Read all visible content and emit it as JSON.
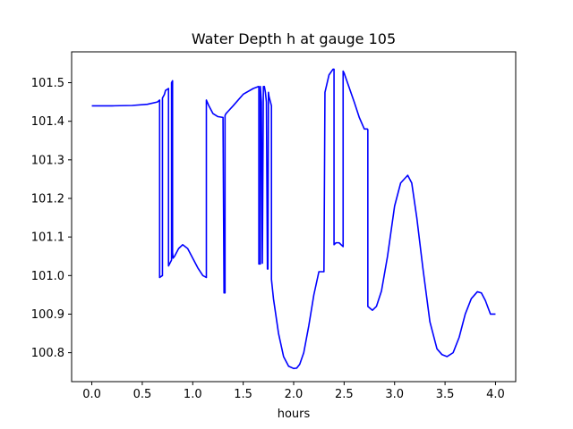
{
  "chart_data": {
    "type": "line",
    "title": "Water Depth h at gauge 105",
    "xlabel": "hours",
    "ylabel": "",
    "xlim": [
      -0.2,
      4.2
    ],
    "ylim": [
      100.725,
      101.58
    ],
    "xticks": [
      0.0,
      0.5,
      1.0,
      1.5,
      2.0,
      2.5,
      3.0,
      3.5,
      4.0
    ],
    "xtick_labels": [
      "0.0",
      "0.5",
      "1.0",
      "1.5",
      "2.0",
      "2.5",
      "3.0",
      "3.5",
      "4.0"
    ],
    "yticks": [
      100.8,
      100.9,
      101.0,
      101.1,
      101.2,
      101.3,
      101.4,
      101.5
    ],
    "ytick_labels": [
      "100.8",
      "100.9",
      "101.0",
      "101.1",
      "101.2",
      "101.3",
      "101.4",
      "101.5"
    ],
    "grid": false,
    "legend": "none",
    "series": [
      {
        "color": "#0000ff",
        "x": [
          0.0,
          0.2,
          0.4,
          0.55,
          0.65,
          0.672,
          0.672,
          0.7,
          0.7,
          0.72,
          0.73,
          0.76,
          0.76,
          0.79,
          0.79,
          0.8,
          0.8,
          0.805,
          0.82,
          0.86,
          0.9,
          0.95,
          1.0,
          1.05,
          1.1,
          1.135,
          1.135,
          1.16,
          1.2,
          1.25,
          1.3,
          1.31,
          1.32,
          1.32,
          1.33,
          1.4,
          1.5,
          1.6,
          1.65,
          1.655,
          1.655,
          1.67,
          1.67,
          1.68,
          1.69,
          1.69,
          1.7,
          1.705,
          1.71,
          1.72,
          1.73,
          1.74,
          1.745,
          1.75,
          1.755,
          1.76,
          1.77,
          1.78,
          1.78,
          1.8,
          1.85,
          1.9,
          1.95,
          2.0,
          2.03,
          2.06,
          2.1,
          2.15,
          2.2,
          2.25,
          2.3,
          2.31,
          2.31,
          2.35,
          2.39,
          2.4,
          2.4,
          2.42,
          2.45,
          2.49,
          2.49,
          2.5,
          2.6,
          2.65,
          2.7,
          2.73,
          2.735,
          2.735,
          2.78,
          2.82,
          2.87,
          2.93,
          3.0,
          3.06,
          3.13,
          3.17,
          3.22,
          3.28,
          3.35,
          3.42,
          3.47,
          3.52,
          3.58,
          3.64,
          3.7,
          3.76,
          3.82,
          3.86,
          3.9,
          3.95,
          4.0
        ],
        "y": [
          101.44,
          101.44,
          101.441,
          101.444,
          101.45,
          101.455,
          100.995,
          101.0,
          101.46,
          101.47,
          101.48,
          101.485,
          101.025,
          101.04,
          101.5,
          101.505,
          101.06,
          101.045,
          101.05,
          101.07,
          101.08,
          101.07,
          101.045,
          101.02,
          101.0,
          100.995,
          101.455,
          101.44,
          101.42,
          101.412,
          101.41,
          100.955,
          100.955,
          101.415,
          101.42,
          101.44,
          101.47,
          101.485,
          101.49,
          101.49,
          101.03,
          101.03,
          101.49,
          101.45,
          101.032,
          101.032,
          101.49,
          101.49,
          101.49,
          101.475,
          101.45,
          101.017,
          101.017,
          101.475,
          101.465,
          101.46,
          101.45,
          101.44,
          100.99,
          100.94,
          100.85,
          100.79,
          100.765,
          100.759,
          100.76,
          100.77,
          100.8,
          100.87,
          100.95,
          101.01,
          101.01,
          101.475,
          101.475,
          101.52,
          101.535,
          101.535,
          101.08,
          101.085,
          101.085,
          101.075,
          101.53,
          101.525,
          101.45,
          101.41,
          101.38,
          101.38,
          101.378,
          100.92,
          100.91,
          100.92,
          100.96,
          101.05,
          101.18,
          101.24,
          101.26,
          101.24,
          101.15,
          101.02,
          100.88,
          100.81,
          100.795,
          100.79,
          100.8,
          100.84,
          100.9,
          100.94,
          100.958,
          100.955,
          100.935,
          100.9,
          100.9
        ]
      }
    ]
  }
}
